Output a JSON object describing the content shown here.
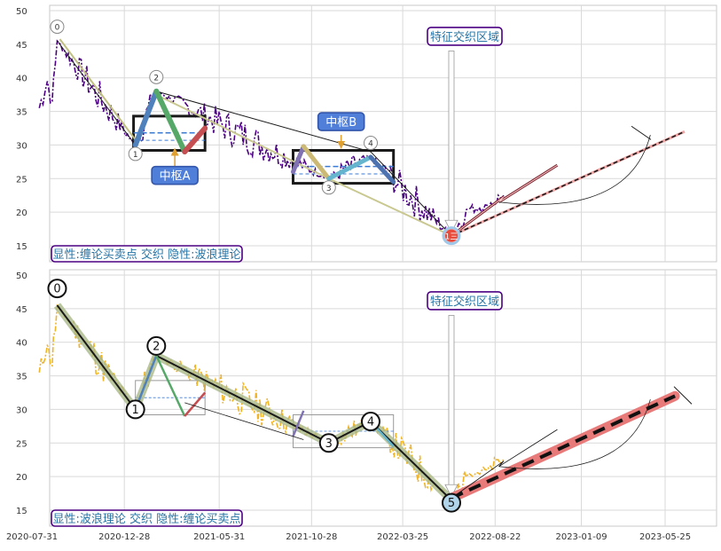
{
  "chart_data": [
    {
      "type": "line",
      "panel": "top",
      "ylim": [
        12.5,
        51
      ],
      "yticks": [
        15,
        20,
        25,
        30,
        35,
        40,
        45,
        50
      ],
      "grid": true,
      "legend_text": "显性:缠论买卖点 交织 隐性:波浪理论",
      "legend_placement": "bottom-left",
      "annotation_region": "特征交织区域",
      "zhongshu": [
        {
          "label": "中枢A",
          "x0": "2021-01-12",
          "x1": "2021-05-08",
          "y0": 29.2,
          "y1": 34.3,
          "mid": 31.8
        },
        {
          "label": "中枢B",
          "x0": "2021-09-28",
          "x1": "2022-03-10",
          "y0": 24.3,
          "y1": 29.2,
          "mid": 26.8
        }
      ],
      "pivots": [
        {
          "label": "0",
          "date": "2020-09-10",
          "value": 45.5
        },
        {
          "label": "1",
          "date": "2021-01-15",
          "value": 30.0
        },
        {
          "label": "2",
          "date": "2021-02-18",
          "value": 38.0
        },
        {
          "label": "3",
          "date": "2021-11-25",
          "value": 25.0
        },
        {
          "label": "4",
          "date": "2022-02-01",
          "value": 28.2
        },
        {
          "label": "1三",
          "date": "2022-06-12",
          "value": 16.5
        }
      ],
      "colors": {
        "price": "#4b0082",
        "annotation_box": "#4b0082",
        "callout": "#4f7fd9",
        "projection": "#c0392b"
      }
    },
    {
      "type": "line",
      "panel": "bottom",
      "ylim": [
        12.5,
        51
      ],
      "yticks": [
        15,
        20,
        25,
        30,
        35,
        40,
        45,
        50
      ],
      "xticks": [
        "2020-07-31",
        "2020-12-28",
        "2021-05-31",
        "2021-10-28",
        "2022-03-25",
        "2022-08-22",
        "2023-01-09",
        "2023-05-25"
      ],
      "grid": true,
      "legend_text": "显性:波浪理论 交织 隐性:缠论买卖点",
      "legend_placement": "bottom-left",
      "annotation_region": "特征交织区域",
      "pivots": [
        {
          "label": "0",
          "date": "2020-09-10",
          "value": 45.5
        },
        {
          "label": "1",
          "date": "2021-01-15",
          "value": 30.0
        },
        {
          "label": "2",
          "date": "2021-02-18",
          "value": 38.0
        },
        {
          "label": "3",
          "date": "2021-11-25",
          "value": 25.0
        },
        {
          "label": "4",
          "date": "2022-02-01",
          "value": 28.2
        },
        {
          "label": "5",
          "date": "2022-06-12",
          "value": 16.5
        }
      ],
      "projection": {
        "from": {
          "date": "2022-06-12",
          "value": 16.8
        },
        "to": {
          "date": "2023-06-10",
          "value": 32.0
        }
      },
      "colors": {
        "price": "#f0b429",
        "wave": "#1a1a1a",
        "wave_halo": "#a9b98a",
        "projection": "#e87a7a"
      }
    }
  ]
}
